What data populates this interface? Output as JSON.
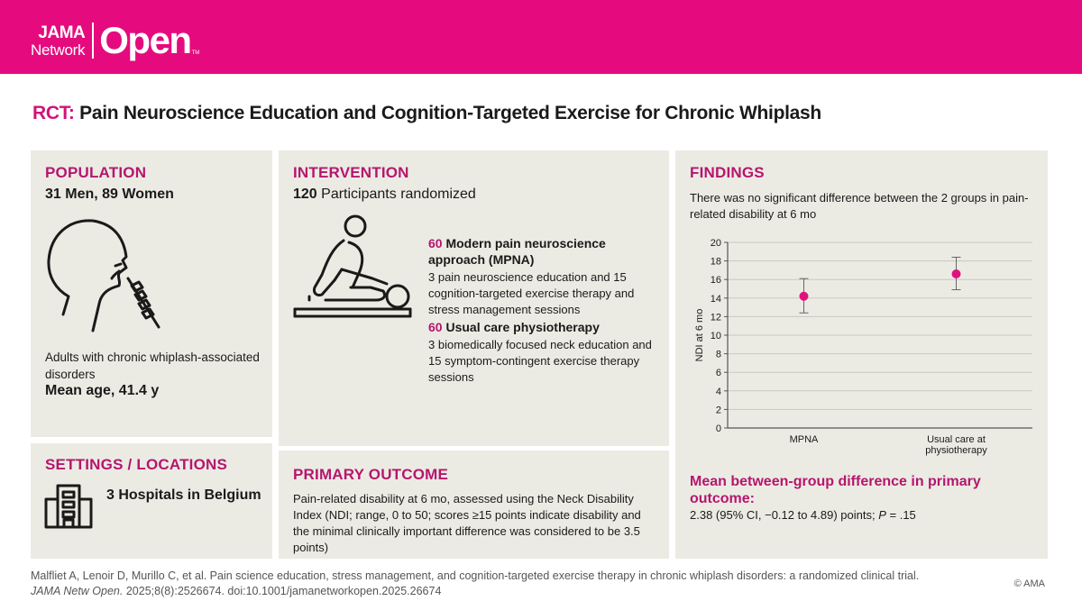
{
  "header": {
    "logo_jama": "JAMA",
    "logo_network": "Network",
    "logo_open": "Open",
    "logo_tm": "TM",
    "color": "#e50b7e"
  },
  "title": {
    "prefix": "RCT:",
    "text": "Pain Neuroscience Education and Cognition-Targeted Exercise for Chronic Whiplash"
  },
  "population": {
    "heading": "POPULATION",
    "count_men": "31 Men, 89 Women",
    "description": "Adults with chronic whiplash-associated disorders",
    "mean_age": "Mean age, 41.4 y",
    "icon": "head-neck-icon"
  },
  "settings": {
    "heading": "SETTINGS / LOCATIONS",
    "text": "3 Hospitals in Belgium",
    "icon": "hospital-building-icon"
  },
  "intervention": {
    "heading": "INTERVENTION",
    "randomized_num": "120",
    "randomized_text": "Participants randomized",
    "icon": "physiotherapy-icon",
    "groups": [
      {
        "count": "60",
        "name": "Modern pain neuroscience approach (MPNA)",
        "description": "3 pain neuroscience education and 15 cognition-targeted exercise therapy and stress management sessions"
      },
      {
        "count": "60",
        "name": "Usual care physiotherapy",
        "description": "3 biomedically focused neck education and 15 symptom-contingent exercise therapy sessions"
      }
    ]
  },
  "outcome": {
    "heading": "PRIMARY OUTCOME",
    "text": "Pain-related disability at 6 mo, assessed using the Neck Disability Index (NDI; range, 0 to 50; scores ≥15 points indicate disability and the minimal clinically important difference was considered to be 3.5 points)"
  },
  "findings": {
    "heading": "FINDINGS",
    "summary": "There was no significant difference between the 2 groups in pain-related disability at 6 mo",
    "mean_heading": "Mean between-group difference in primary outcome:",
    "mean_text_a": "2.38 (95% CI, −0.12 to 4.89) points; ",
    "mean_text_p": "P",
    "mean_text_b": " = .15"
  },
  "chart_data": {
    "type": "scatter",
    "subtype": "point-with-error-bars",
    "categories": [
      "MPNA",
      "Usual care at physiotherapy"
    ],
    "category_label_lines": [
      [
        "MPNA"
      ],
      [
        "Usual care at",
        "physiotherapy"
      ]
    ],
    "series": [
      {
        "values": [
          14.2,
          16.6
        ],
        "ci_low": [
          12.4,
          14.9
        ],
        "ci_high": [
          16.1,
          18.4
        ]
      }
    ],
    "ylabel": "NDI at 6 mo",
    "xlabel": "",
    "ylim": [
      0,
      20
    ],
    "yticks": [
      0,
      2,
      4,
      6,
      8,
      10,
      12,
      14,
      16,
      18,
      20
    ],
    "grid": true,
    "point_color": "#e0117f"
  },
  "citation": {
    "line1": "Malfliet A, Lenoir D, Murillo C, et al. Pain science education, stress management, and cognition-targeted exercise therapy in chronic whiplash disorders: a randomized clinical trial.",
    "journal": "JAMA Netw Open.",
    "rest": " 2025;8(8):2526674. doi:10.1001/jamanetworkopen.2025.26674",
    "copyright": "© AMA"
  }
}
